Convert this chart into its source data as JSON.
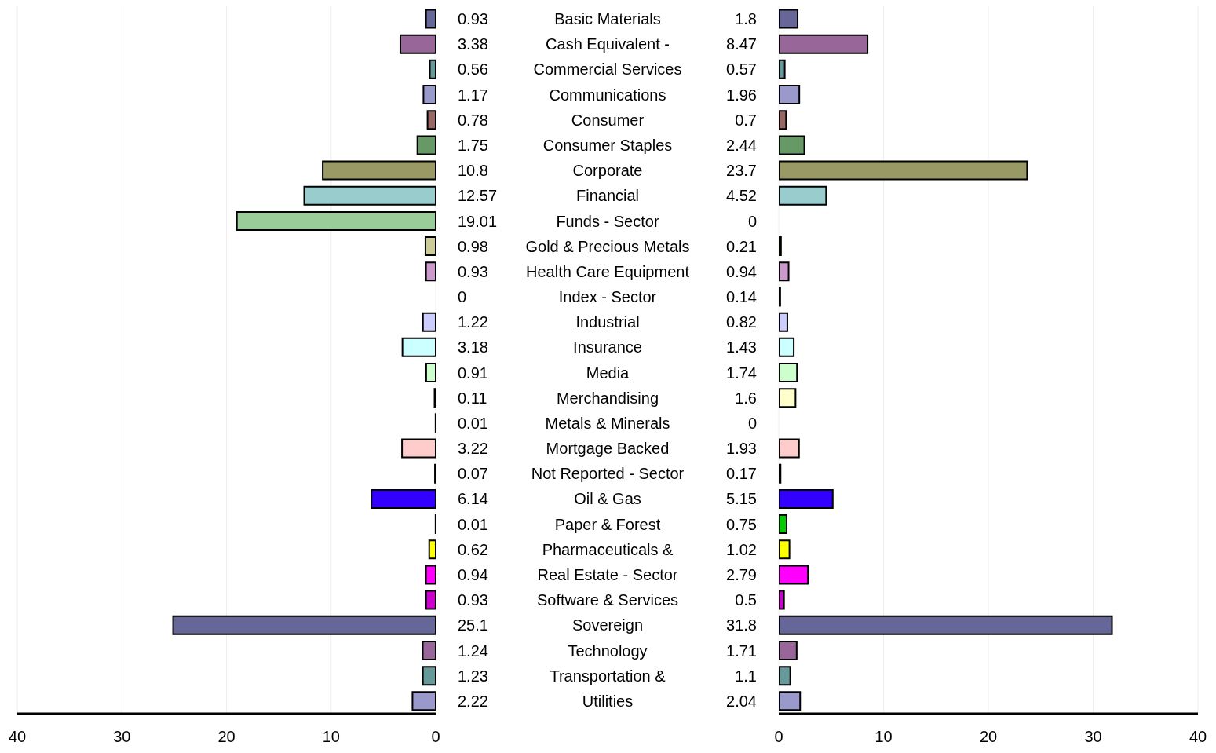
{
  "chart_data": [
    {
      "type": "bar",
      "orientation": "horizontal",
      "categories": [
        "Basic Materials",
        "Cash Equivalent -",
        "Commercial Services",
        "Communications",
        "Consumer",
        "Consumer Staples",
        "Corporate",
        "Financial",
        "Funds - Sector",
        "Gold & Precious Metals",
        "Health Care Equipment",
        "Index - Sector",
        "Industrial",
        "Insurance",
        "Media",
        "Merchandising",
        "Metals & Minerals",
        "Mortgage Backed",
        "Not Reported - Sector",
        "Oil & Gas",
        "Paper & Forest",
        "Pharmaceuticals &",
        "Real Estate - Sector",
        "Software & Services",
        "Sovereign",
        "Technology",
        "Transportation &",
        "Utilities"
      ],
      "values": [
        0.93,
        3.38,
        0.56,
        1.17,
        0.78,
        1.75,
        10.8,
        12.57,
        19.01,
        0.98,
        0.93,
        0,
        1.22,
        3.18,
        0.91,
        0.11,
        0.01,
        3.22,
        0.07,
        6.14,
        0.01,
        0.62,
        0.94,
        0.93,
        25.1,
        1.24,
        1.23,
        2.22
      ],
      "colors": [
        "#666699",
        "#996699",
        "#669999",
        "#9999cc",
        "#996666",
        "#669966",
        "#999966",
        "#99cccc",
        "#99cc99",
        "#cccc99",
        "#cc99cc",
        "#cc9999",
        "#ccccff",
        "#ccffff",
        "#ccffcc",
        "#ffffcc",
        "#ffcccc",
        "#ffcccc",
        "#ffccff",
        "#3300ff",
        "#00cc00",
        "#ffff00",
        "#ff00ff",
        "#cc00cc",
        "#666699",
        "#996699",
        "#669999",
        "#9999cc"
      ],
      "xlim": [
        40,
        0
      ],
      "xticks": [
        40,
        30,
        20,
        10,
        0
      ],
      "grid": "x",
      "data_labels": true
    },
    {
      "type": "bar",
      "orientation": "horizontal",
      "categories": [
        null,
        null,
        null,
        null,
        null,
        null,
        null,
        null,
        null,
        null,
        null,
        null,
        null,
        null,
        null,
        null,
        null,
        null,
        null,
        null,
        null,
        null,
        null,
        null,
        null,
        null,
        null,
        null
      ],
      "values": [
        1.8,
        8.47,
        0.57,
        1.96,
        0.7,
        2.44,
        23.7,
        4.52,
        0,
        0.21,
        0.94,
        0.14,
        0.82,
        1.43,
        1.74,
        1.6,
        0,
        1.93,
        0.17,
        5.15,
        0.75,
        1.02,
        2.79,
        0.5,
        31.8,
        1.71,
        1.1,
        2.04
      ],
      "colors": [
        "#666699",
        "#996699",
        "#669999",
        "#9999cc",
        "#996666",
        "#669966",
        "#999966",
        "#99cccc",
        "#99cc99",
        "#cccc99",
        "#cc99cc",
        "#cc9999",
        "#ccccff",
        "#ccffff",
        "#ccffcc",
        "#ffffcc",
        "#ffcccc",
        "#ffcccc",
        "#ffccff",
        "#3300ff",
        "#00cc00",
        "#ffff00",
        "#ff00ff",
        "#cc00cc",
        "#666699",
        "#996699",
        "#669999",
        "#9999cc"
      ],
      "xlim": [
        0,
        40
      ],
      "xticks": [
        0,
        10,
        20,
        30,
        40
      ],
      "grid": "x",
      "data_labels": true,
      "tick_labels": "x"
    }
  ]
}
